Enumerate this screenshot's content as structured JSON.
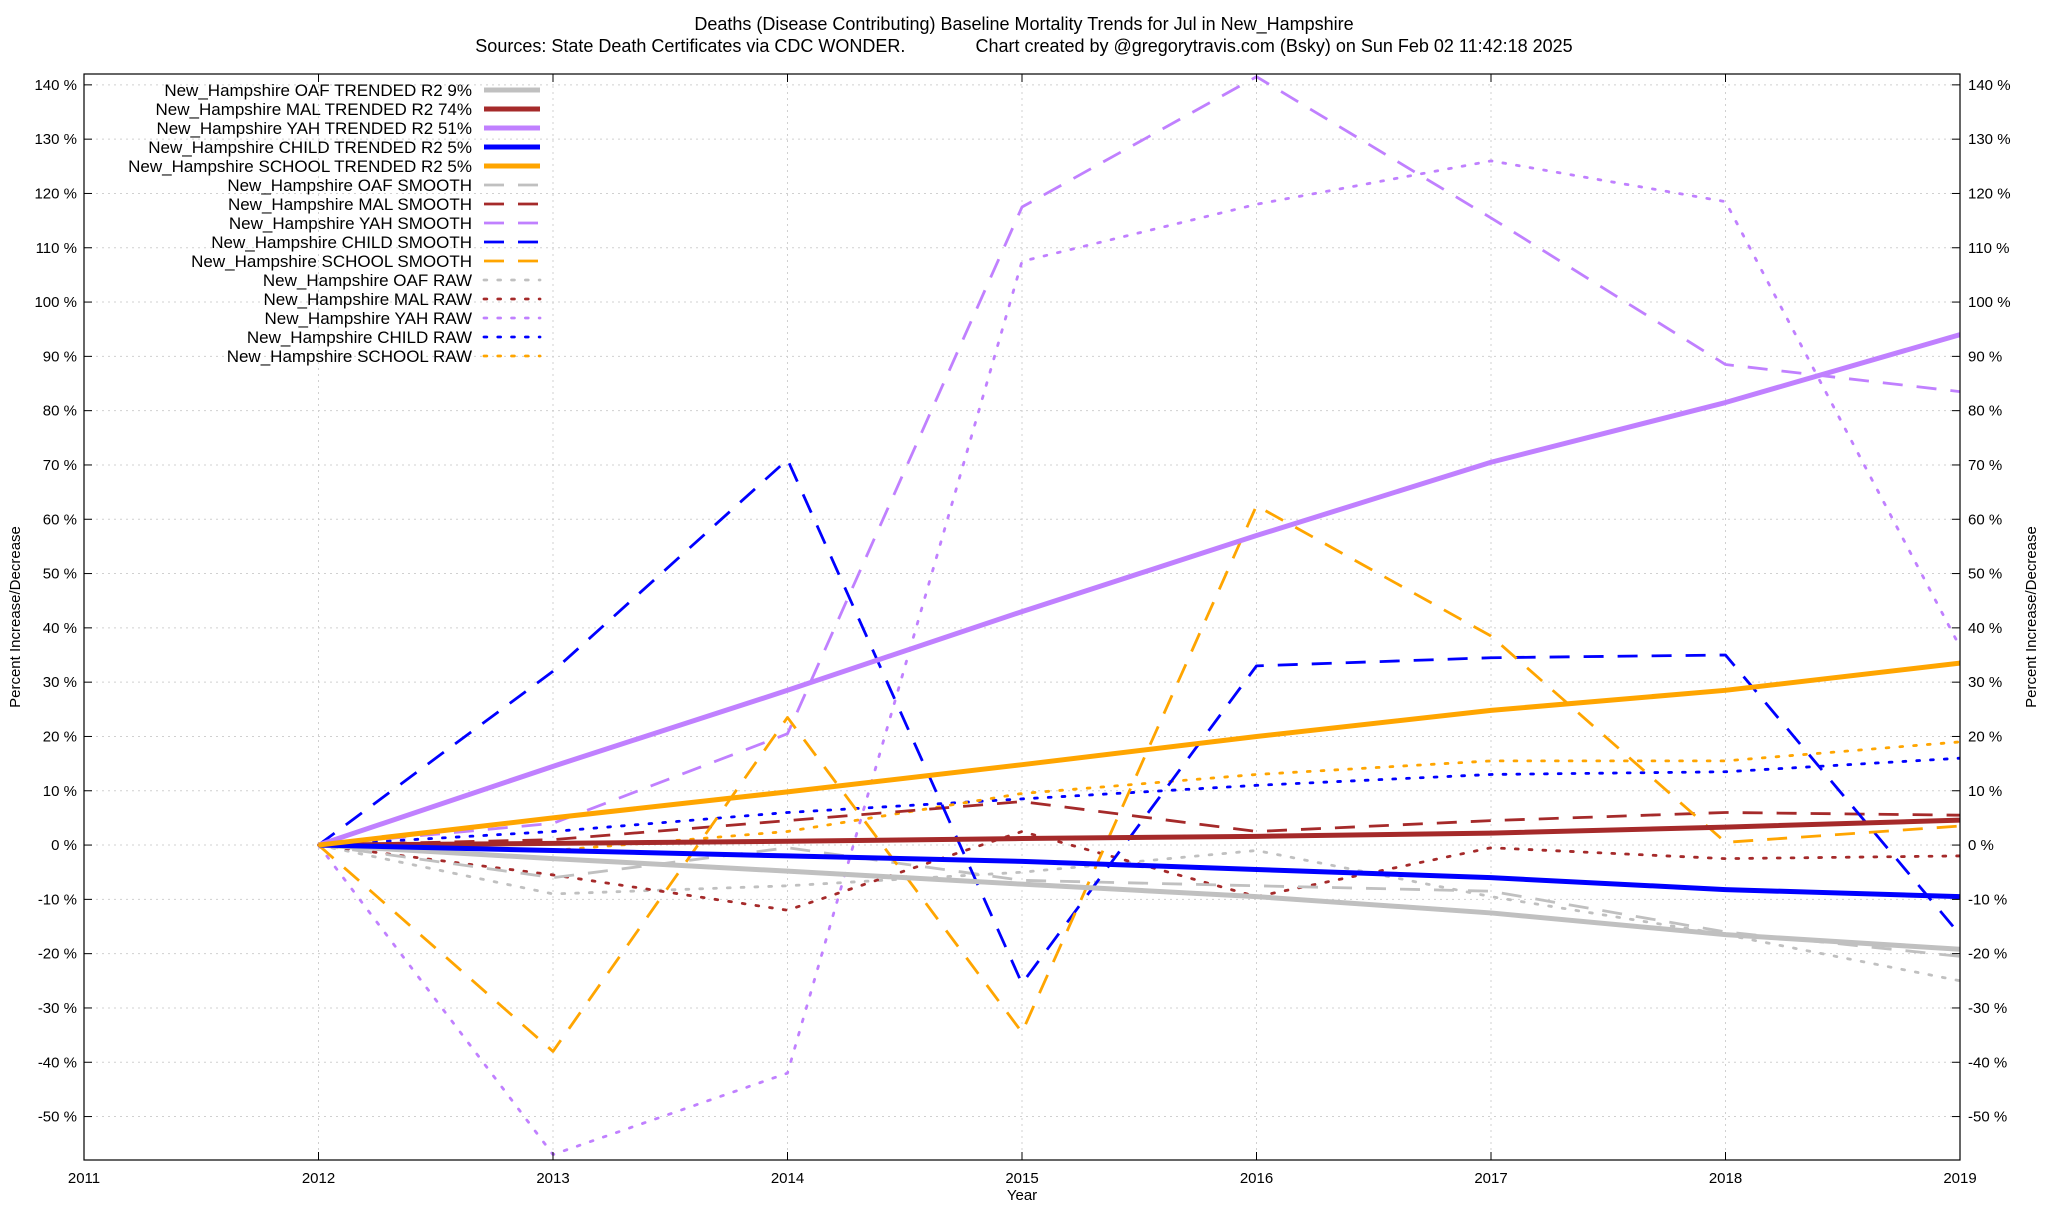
{
  "chart_data": {
    "type": "line",
    "title": "Deaths (Disease Contributing)  Baseline Mortality Trends for Jul in New_Hampshire",
    "subtitle": "Sources: State Death Certificates via CDC WONDER.              Chart created by @gregorytravis.com (Bsky) on Sun Feb 02 11:42:18 2025",
    "xlabel": "Year",
    "ylabel": "Percent Increase/Decrease",
    "y2label": "Percent Increase/Decrease",
    "xlim": [
      2011,
      2019
    ],
    "ylim": [
      -58,
      142
    ],
    "x_ticks": [
      "2011",
      "2012",
      "2013",
      "2014",
      "2015",
      "2016",
      "2017",
      "2018",
      "2019"
    ],
    "y_ticks_left": [
      "140 %",
      "130 %",
      "120 %",
      "110 %",
      "100 %",
      "90 %",
      "80 %",
      "70 %",
      "60 %",
      "50 %",
      "40 %",
      "30 %",
      "20 %",
      "10 %",
      "0 %",
      "-10 %",
      "-20 %",
      "-30 %",
      "-40 %",
      "-50 %"
    ],
    "y_ticks_right": [
      "140 %",
      "130 %",
      "120 %",
      "110 %",
      "100 %",
      "90 %",
      "80 %",
      "70 %",
      "60 %",
      "50 %",
      "40 %",
      "30 %",
      "20 %",
      "10 %",
      "0 %",
      "-10 %",
      "-20 %",
      "-30 %",
      "-40 %",
      "-50 %"
    ],
    "y_tick_values": [
      140,
      130,
      120,
      110,
      100,
      90,
      80,
      70,
      60,
      50,
      40,
      30,
      20,
      10,
      0,
      -10,
      -20,
      -30,
      -40,
      -50
    ],
    "grid": true,
    "legend_position": "top-left",
    "x": [
      2012,
      2013,
      2014,
      2015,
      2016,
      2017,
      2018,
      2019
    ],
    "series": [
      {
        "name": "New_Hampshire OAF TRENDED R2  9%",
        "style": "solid",
        "color": "#c0c0c0",
        "values": [
          0,
          -2.5,
          -4.8,
          -7.2,
          -9.5,
          -12.5,
          -16.5,
          -19.2
        ]
      },
      {
        "name": "New_Hampshire MAL TRENDED R2  74%",
        "style": "solid",
        "color": "#a52a2a",
        "values": [
          0,
          0.3,
          0.7,
          1.2,
          1.6,
          2.2,
          3.3,
          4.6
        ]
      },
      {
        "name": "New_Hampshire YAH TRENDED R2  51%",
        "style": "solid",
        "color": "#c080ff",
        "values": [
          0,
          14.5,
          28.5,
          43,
          57,
          70.5,
          81.5,
          94
        ]
      },
      {
        "name": "New_Hampshire CHILD TRENDED R2  5%",
        "style": "solid",
        "color": "#0000ff",
        "values": [
          0,
          -1,
          -2,
          -3,
          -4.5,
          -6,
          -8.2,
          -9.5
        ]
      },
      {
        "name": "New_Hampshire SCHOOL TRENDED R2  5%",
        "style": "solid",
        "color": "#ffa500",
        "values": [
          0,
          5,
          9.8,
          14.8,
          20,
          24.8,
          28.5,
          33.5
        ]
      },
      {
        "name": "New_Hampshire OAF SMOOTH",
        "style": "dashed",
        "color": "#c0c0c0",
        "values": [
          0,
          -6,
          -0.5,
          -6.5,
          -7.5,
          -8.5,
          -16,
          -20.5
        ]
      },
      {
        "name": "New_Hampshire MAL SMOOTH",
        "style": "dashed",
        "color": "#a52a2a",
        "values": [
          0,
          1,
          4.5,
          8,
          2.5,
          4.5,
          6,
          5.5
        ]
      },
      {
        "name": "New_Hampshire YAH SMOOTH",
        "style": "dashed",
        "color": "#c080ff",
        "values": [
          0,
          4,
          20.5,
          117.5,
          141.5,
          115.5,
          88.5,
          83.5
        ]
      },
      {
        "name": "New_Hampshire CHILD SMOOTH",
        "style": "dashed",
        "color": "#0000ff",
        "values": [
          0,
          32,
          71,
          -25.5,
          33,
          34.5,
          35,
          -16.5
        ]
      },
      {
        "name": "New_Hampshire SCHOOL SMOOTH",
        "style": "dashed",
        "color": "#ffa500",
        "values": [
          0,
          -38,
          23.5,
          -34.5,
          62.5,
          38.5,
          0.5,
          3.5
        ]
      },
      {
        "name": "New_Hampshire OAF RAW",
        "style": "dotted",
        "color": "#c0c0c0",
        "values": [
          0,
          -9,
          -7.5,
          -5,
          -1,
          -9.5,
          -16.5,
          -25
        ]
      },
      {
        "name": "New_Hampshire MAL RAW",
        "style": "dotted",
        "color": "#a52a2a",
        "values": [
          0,
          -5.5,
          -12,
          2.5,
          -9.5,
          -0.5,
          -2.5,
          -2
        ]
      },
      {
        "name": "New_Hampshire YAH RAW",
        "style": "dotted",
        "color": "#c080ff",
        "values": [
          0,
          -57,
          -42,
          107.5,
          118,
          126,
          118.5,
          36.5
        ]
      },
      {
        "name": "New_Hampshire CHILD RAW",
        "style": "dotted",
        "color": "#0000ff",
        "values": [
          0,
          2.5,
          6,
          8.5,
          11,
          13,
          13.5,
          16
        ]
      },
      {
        "name": "New_Hampshire SCHOOL RAW",
        "style": "dotted",
        "color": "#ffa500",
        "values": [
          0,
          -1,
          2.5,
          9.5,
          13,
          15.5,
          15.5,
          19
        ]
      }
    ]
  }
}
